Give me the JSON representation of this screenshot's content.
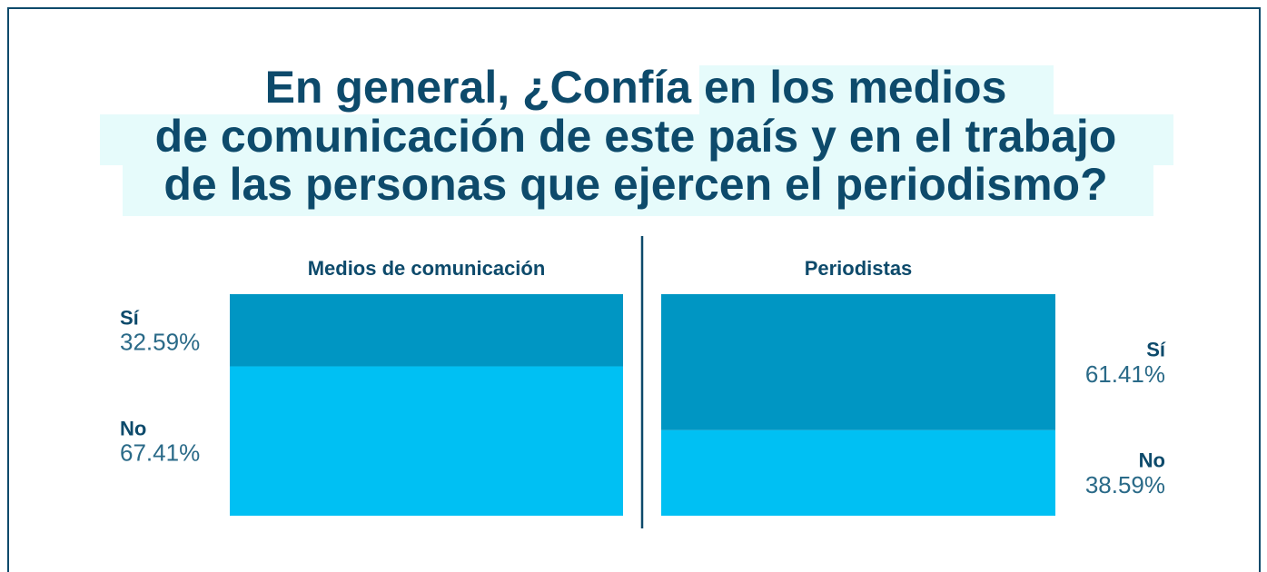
{
  "title": [
    "En general, ¿Confía en los medios",
    "de comunicación de este país y en el trabajo",
    "de las personas que ejercen el periodismo?"
  ],
  "chart_data": [
    {
      "type": "stacked-bar",
      "title": "Medios de comunicación",
      "categories": [
        "Sí",
        "No"
      ],
      "values": [
        32.59,
        67.41
      ],
      "value_labels": [
        "32.59%",
        "67.41%"
      ],
      "colors": [
        "#0096c3",
        "#00c0f3"
      ],
      "ylim": [
        0,
        100
      ],
      "label_side": "left"
    },
    {
      "type": "stacked-bar",
      "title": "Periodistas",
      "categories": [
        "Sí",
        "No"
      ],
      "values": [
        61.41,
        38.59
      ],
      "value_labels": [
        "61.41%",
        "38.59%"
      ],
      "colors": [
        "#0096c3",
        "#00c0f3"
      ],
      "ylim": [
        0,
        100
      ],
      "label_side": "right"
    }
  ]
}
